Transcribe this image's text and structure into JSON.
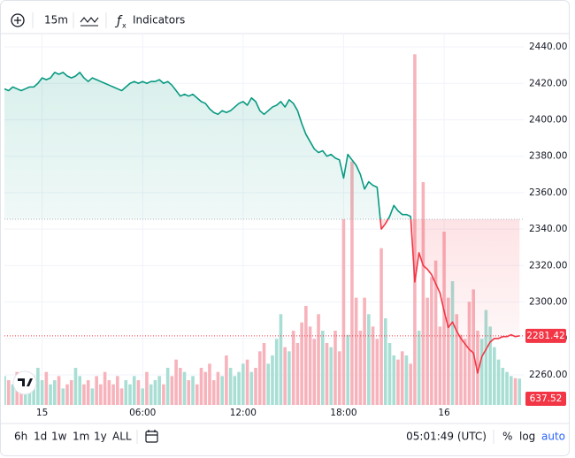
{
  "toolbar": {
    "interval": "15m",
    "indicators": "Indicators"
  },
  "chart_data": {
    "type": "baseline",
    "values": [
      2417,
      2416,
      2418,
      2417,
      2416,
      2417,
      2418,
      2418,
      2420,
      2423,
      2422,
      2423,
      2426,
      2425,
      2426,
      2424,
      2423,
      2424,
      2426,
      2423,
      2421,
      2423,
      2422,
      2421,
      2420,
      2419,
      2418,
      2417,
      2416,
      2418,
      2420,
      2421,
      2420,
      2421,
      2420,
      2421,
      2421,
      2422,
      2420,
      2421,
      2419,
      2416,
      2413,
      2414,
      2413,
      2414,
      2412,
      2410,
      2409,
      2406,
      2404,
      2403,
      2405,
      2404,
      2405,
      2407,
      2409,
      2410,
      2408,
      2412,
      2410,
      2405,
      2403,
      2405,
      2407,
      2408,
      2410,
      2407,
      2411,
      2409,
      2405,
      2398,
      2392,
      2388,
      2384,
      2382,
      2383,
      2380,
      2381,
      2379,
      2378,
      2368,
      2381,
      2378,
      2375,
      2370,
      2362,
      2366,
      2364,
      2363,
      2340,
      2343,
      2347,
      2353,
      2350,
      2348,
      2348,
      2347,
      2311,
      2327,
      2320,
      2318,
      2315,
      2310,
      2305,
      2295,
      2286,
      2289,
      2284,
      2280,
      2277,
      2274,
      2272,
      2261,
      2270,
      2274,
      2278,
      2280,
      2280,
      2281,
      2281,
      2282,
      2281,
      2281.42
    ],
    "baseline": 2345.4,
    "color_up": "#089981",
    "color_down": "#f23645",
    "volume": {
      "values": [
        700,
        600,
        500,
        800,
        400,
        600,
        500,
        700,
        900,
        600,
        800,
        500,
        600,
        700,
        400,
        500,
        600,
        900,
        700,
        500,
        600,
        400,
        700,
        500,
        800,
        600,
        500,
        700,
        400,
        600,
        500,
        700,
        600,
        400,
        800,
        500,
        600,
        700,
        500,
        900,
        700,
        1100,
        900,
        800,
        600,
        700,
        500,
        900,
        800,
        1000,
        600,
        800,
        700,
        1200,
        900,
        700,
        800,
        1000,
        1100,
        800,
        900,
        1300,
        1500,
        1000,
        1200,
        1600,
        2200,
        1400,
        1300,
        1800,
        1500,
        2000,
        2400,
        1900,
        1600,
        2200,
        1800,
        1500,
        1400,
        1800,
        1300,
        4500,
        1700,
        5900,
        2600,
        1800,
        2600,
        2200,
        1900,
        1600,
        3800,
        2100,
        1500,
        1200,
        1100,
        1300,
        1200,
        1000,
        8500,
        1800,
        5400,
        2600,
        3100,
        3500,
        1900,
        4200,
        2600,
        3000,
        2200,
        1700,
        1600,
        2500,
        2800,
        1800,
        1600,
        2300,
        1900,
        1400,
        1100,
        900,
        800,
        700,
        650,
        637.52
      ],
      "ylim": [
        0,
        9000
      ],
      "color_up": "#a8ded4",
      "color_down": "#f7b3bb"
    },
    "xlim": [
      0,
      124
    ],
    "xticks": [
      {
        "value": 9,
        "label": "15"
      },
      {
        "value": 33,
        "label": "06:00"
      },
      {
        "value": 57,
        "label": "12:00"
      },
      {
        "value": 81,
        "label": "18:00"
      },
      {
        "value": 105,
        "label": "16"
      }
    ],
    "ylim": [
      2243.5,
      2447.3
    ],
    "yticks": [
      {
        "value": 2260,
        "label": "2260.00"
      },
      {
        "value": 2280,
        "label": "2280.00"
      },
      {
        "value": 2300,
        "label": "2300.00"
      },
      {
        "value": 2320,
        "label": "2320.00"
      },
      {
        "value": 2340,
        "label": "2340.00"
      },
      {
        "value": 2360,
        "label": "2360.00"
      },
      {
        "value": 2380,
        "label": "2380.00"
      },
      {
        "value": 2400,
        "label": "2400.00"
      },
      {
        "value": 2420,
        "label": "2420.00"
      },
      {
        "value": 2440,
        "label": "2440.00"
      }
    ],
    "grid": true
  },
  "bottom_bar": {
    "ranges": [
      "6h",
      "1d",
      "1w",
      "1m",
      "1y",
      "ALL"
    ],
    "clock": "05:01:49 (UTC)",
    "percent": "%",
    "log": "log",
    "auto": "auto"
  }
}
